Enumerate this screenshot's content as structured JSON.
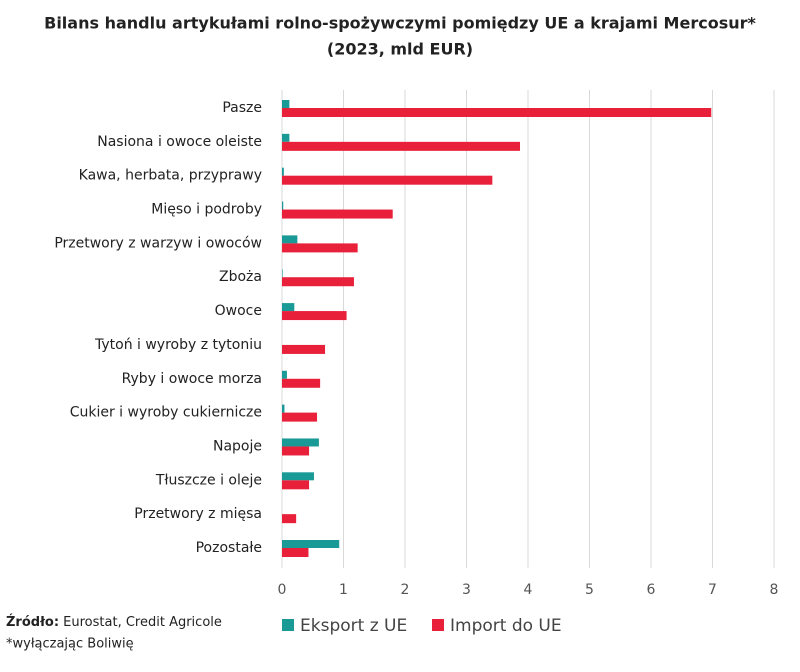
{
  "chart_data": {
    "type": "hbar",
    "title": "Bilans handlu artykułami rolno-spożywczymi pomiędzy UE a krajami Mercosur*",
    "subtitle": "(2023, mld EUR)",
    "categories": [
      "Pasze",
      "Nasiona i owoce oleiste",
      "Kawa, herbata, przyprawy",
      "Mięso i podroby",
      "Przetwory z warzyw i owoców",
      "Zboża",
      "Owoce",
      "Tytoń i wyroby z tytoniu",
      "Ryby i owoce morza",
      "Cukier i wyroby cukiernicze",
      "Napoje",
      "Tłuszcze i oleje",
      "Przetwory z mięsa",
      "Pozostałe"
    ],
    "series": [
      {
        "name": "Eksport z UE",
        "color": "#1a9a96",
        "values": [
          0.12,
          0.12,
          0.03,
          0.02,
          0.25,
          0.01,
          0.2,
          0.0,
          0.08,
          0.04,
          0.6,
          0.52,
          0.0,
          0.93
        ]
      },
      {
        "name": "Import do UE",
        "color": "#e8203a",
        "values": [
          6.98,
          3.87,
          3.42,
          1.8,
          1.23,
          1.17,
          1.05,
          0.7,
          0.62,
          0.57,
          0.44,
          0.44,
          0.23,
          0.43
        ]
      }
    ],
    "xlim": [
      0,
      8
    ],
    "xticks": [
      0,
      1,
      2,
      3,
      4,
      5,
      6,
      7,
      8
    ],
    "grid": true,
    "source_label": "Źródło:",
    "source": "Eurostat, Credit Agricole",
    "note": "*wyłączając Boliwię"
  }
}
